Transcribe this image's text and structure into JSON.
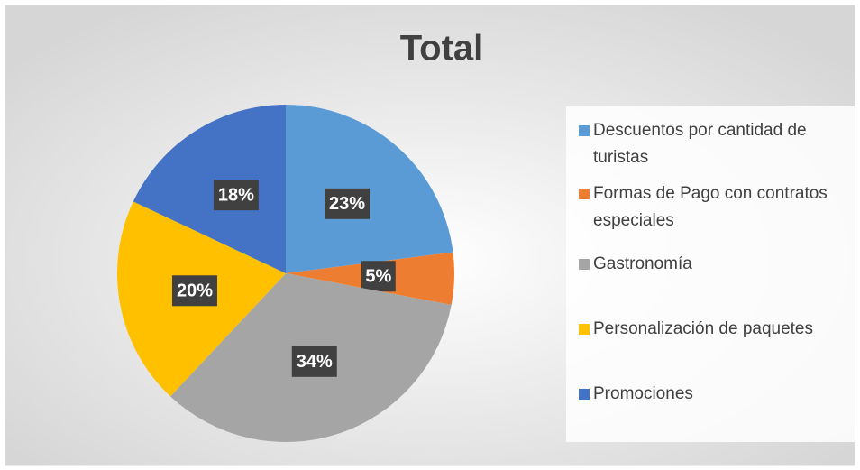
{
  "chart_data": {
    "type": "pie",
    "title": "Total",
    "categories": [
      "Descuentos por cantidad de turistas",
      "Formas de Pago con contratos especiales",
      "Gastronomía",
      "Personalización de paquetes",
      "Promociones"
    ],
    "values": [
      23,
      5,
      34,
      20,
      18
    ],
    "value_labels": [
      "23%",
      "5%",
      "34%",
      "20%",
      "18%"
    ],
    "colors": [
      "#5b9bd5",
      "#ed7d31",
      "#a5a5a5",
      "#ffc000",
      "#4472c4"
    ],
    "legend": "right"
  }
}
